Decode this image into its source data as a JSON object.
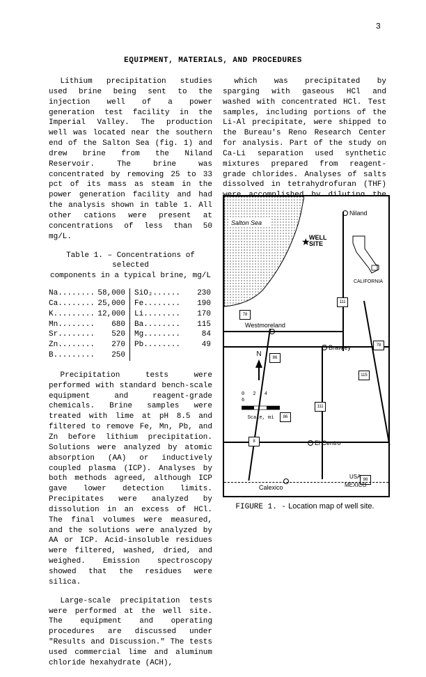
{
  "page_number": "3",
  "section_title": "EQUIPMENT, MATERIALS, AND PROCEDURES",
  "left_column": {
    "p1": "Lithium precipitation studies used brine being sent to the injection well of a power generation test facility in the Imperial Valley. The production well was located near the southern end of the Salton Sea (fig. 1) and drew brine from the Niland Reservoir. The brine was concentrated by removing 25 to 33 pct of its mass as steam in the power generation facility and had the analysis shown in table 1. All other cations were present at concentrations of less than 50 mg/L.",
    "table_caption_1": "Table 1. – Concentrations of selected",
    "table_caption_2": "components in a typical brine, mg/L",
    "p2": "Precipitation tests were performed with standard bench-scale equipment and reagent-grade chemicals. Brine samples were treated with lime at pH 8.5 and filtered to remove Fe, Mn, Pb, and Zn before lithium precipitation. Solutions were analyzed by atomic absorption (AA) or inductively coupled plasma (ICP). Analyses by both methods agreed, although ICP gave lower detection limits. Precipitates were analyzed by dissolution in an excess of HCl. The final volumes were measured, and the solutions were analyzed by AA or ICP. Acid-insoluble residues were filtered, washed, dried, and weighed. Emission spectroscopy showed that the residues were silica.",
    "p3": "Large-scale precipitation tests were performed at the well site. The equipment and operating procedures are discussed under \"Results and Discussion.\" The tests used commercial lime and aluminum chloride hexahydrate (ACH),",
    "table": {
      "left_rows": [
        {
          "el": "Na........",
          "val": "58,000"
        },
        {
          "el": "Ca........",
          "val": "25,000"
        },
        {
          "el": "K.........",
          "val": "12,000"
        },
        {
          "el": "Mn........",
          "val": "680"
        },
        {
          "el": "Sr........",
          "val": "520"
        },
        {
          "el": "Zn........",
          "val": "270"
        },
        {
          "el": "B.........",
          "val": "250"
        }
      ],
      "right_rows": [
        {
          "el": "SiO₂......",
          "val": "230"
        },
        {
          "el": "Fe........",
          "val": "190"
        },
        {
          "el": "Li........",
          "val": "170"
        },
        {
          "el": "Ba........",
          "val": "115"
        },
        {
          "el": "Mg........",
          "val": "84"
        },
        {
          "el": "Pb........",
          "val": "49"
        }
      ]
    }
  },
  "right_column": {
    "p1": "which was precipitated by sparging with gaseous HCl and washed with concentrated HCl. Test samples, including portions of the Li-Al precipitate, were shipped to the Bureau's Reno Research Center for analysis. Part of the study on Ca-Li separation used synthetic mixtures prepared from reagent-grade chlorides. Analyses of salts dissolved in tetrahydrofuran (THF) were accomplished by diluting the solution with an equal volume of water, evaporating to the original volume, and analyzing the aqueous solutions."
  },
  "figure": {
    "caption_prefix": "FIGURE 1. -",
    "caption_text": "Location map of well site.",
    "labels": {
      "salton_sea": "Salton Sea",
      "niland": "Niland",
      "well_site": "WELL\nSITE",
      "westmoreland": "Westmoreland",
      "brawley": "Brawley",
      "el_centro": "El Centro",
      "calexico": "Calexico",
      "california": "CALIFORNIA",
      "usa": "USA",
      "mexico": "MEXICO",
      "scale_label": "Scale, mi",
      "scale_nums": "0  2  4  6",
      "north": "N",
      "routes": [
        "78",
        "111",
        "86",
        "115",
        "78",
        "86",
        "111",
        "8",
        "98"
      ]
    }
  }
}
